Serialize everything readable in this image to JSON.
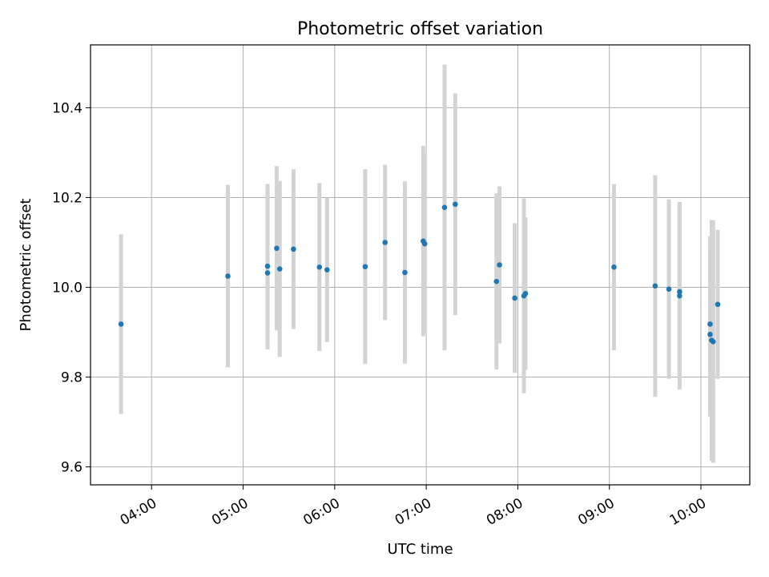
{
  "chart_data": {
    "type": "scatter",
    "title": "Photometric offset variation",
    "xlabel": "UTC time",
    "ylabel": "Photometric offset",
    "xlim": [
      "03:20",
      "10:32"
    ],
    "ylim": [
      9.56,
      10.54
    ],
    "xticks": [
      "04:00",
      "05:00",
      "06:00",
      "07:00",
      "08:00",
      "09:00",
      "10:00"
    ],
    "yticks": [
      9.6,
      9.8,
      10.0,
      10.2,
      10.4
    ],
    "ytick_labels": [
      "9.6",
      "9.8",
      "10.0",
      "10.2",
      "10.4"
    ],
    "grid": true,
    "colors": {
      "point": "#1f77b4",
      "errorbar": "#d3d3d3",
      "grid": "#b0b0b0"
    },
    "points": [
      {
        "x": "03:40",
        "y": 9.918,
        "err": 0.2
      },
      {
        "x": "04:50",
        "y": 10.025,
        "err": 0.203
      },
      {
        "x": "05:16",
        "y": 10.047,
        "err": 0.183
      },
      {
        "x": "05:16",
        "y": 10.032,
        "err": 0.17
      },
      {
        "x": "05:22",
        "y": 10.087,
        "err": 0.183
      },
      {
        "x": "05:24",
        "y": 10.041,
        "err": 0.196
      },
      {
        "x": "05:33",
        "y": 10.085,
        "err": 0.178
      },
      {
        "x": "05:50",
        "y": 10.045,
        "err": 0.187
      },
      {
        "x": "05:55",
        "y": 10.039,
        "err": 0.161
      },
      {
        "x": "06:20",
        "y": 10.046,
        "err": 0.217
      },
      {
        "x": "06:33",
        "y": 10.1,
        "err": 0.173
      },
      {
        "x": "06:46",
        "y": 10.033,
        "err": 0.203
      },
      {
        "x": "06:58",
        "y": 10.103,
        "err": 0.212
      },
      {
        "x": "06:59",
        "y": 10.097,
        "err": 0.2
      },
      {
        "x": "07:12",
        "y": 10.178,
        "err": 0.318
      },
      {
        "x": "07:19",
        "y": 10.185,
        "err": 0.247
      },
      {
        "x": "07:46",
        "y": 10.013,
        "err": 0.196
      },
      {
        "x": "07:48",
        "y": 10.05,
        "err": 0.175
      },
      {
        "x": "07:58",
        "y": 9.976,
        "err": 0.167
      },
      {
        "x": "08:04",
        "y": 9.981,
        "err": 0.217
      },
      {
        "x": "08:05",
        "y": 9.986,
        "err": 0.17
      },
      {
        "x": "09:03",
        "y": 10.045,
        "err": 0.185
      },
      {
        "x": "09:30",
        "y": 10.003,
        "err": 0.247
      },
      {
        "x": "09:39",
        "y": 9.996,
        "err": 0.2
      },
      {
        "x": "09:46",
        "y": 9.981,
        "err": 0.209
      },
      {
        "x": "09:46",
        "y": 9.99,
        "err": 0.2
      },
      {
        "x": "10:06",
        "y": 9.918,
        "err": 0.196
      },
      {
        "x": "10:06",
        "y": 9.895,
        "err": 0.183
      },
      {
        "x": "10:07",
        "y": 9.882,
        "err": 0.268
      },
      {
        "x": "10:08",
        "y": 9.879,
        "err": 0.27
      },
      {
        "x": "10:11",
        "y": 9.962,
        "err": 0.166
      }
    ]
  }
}
